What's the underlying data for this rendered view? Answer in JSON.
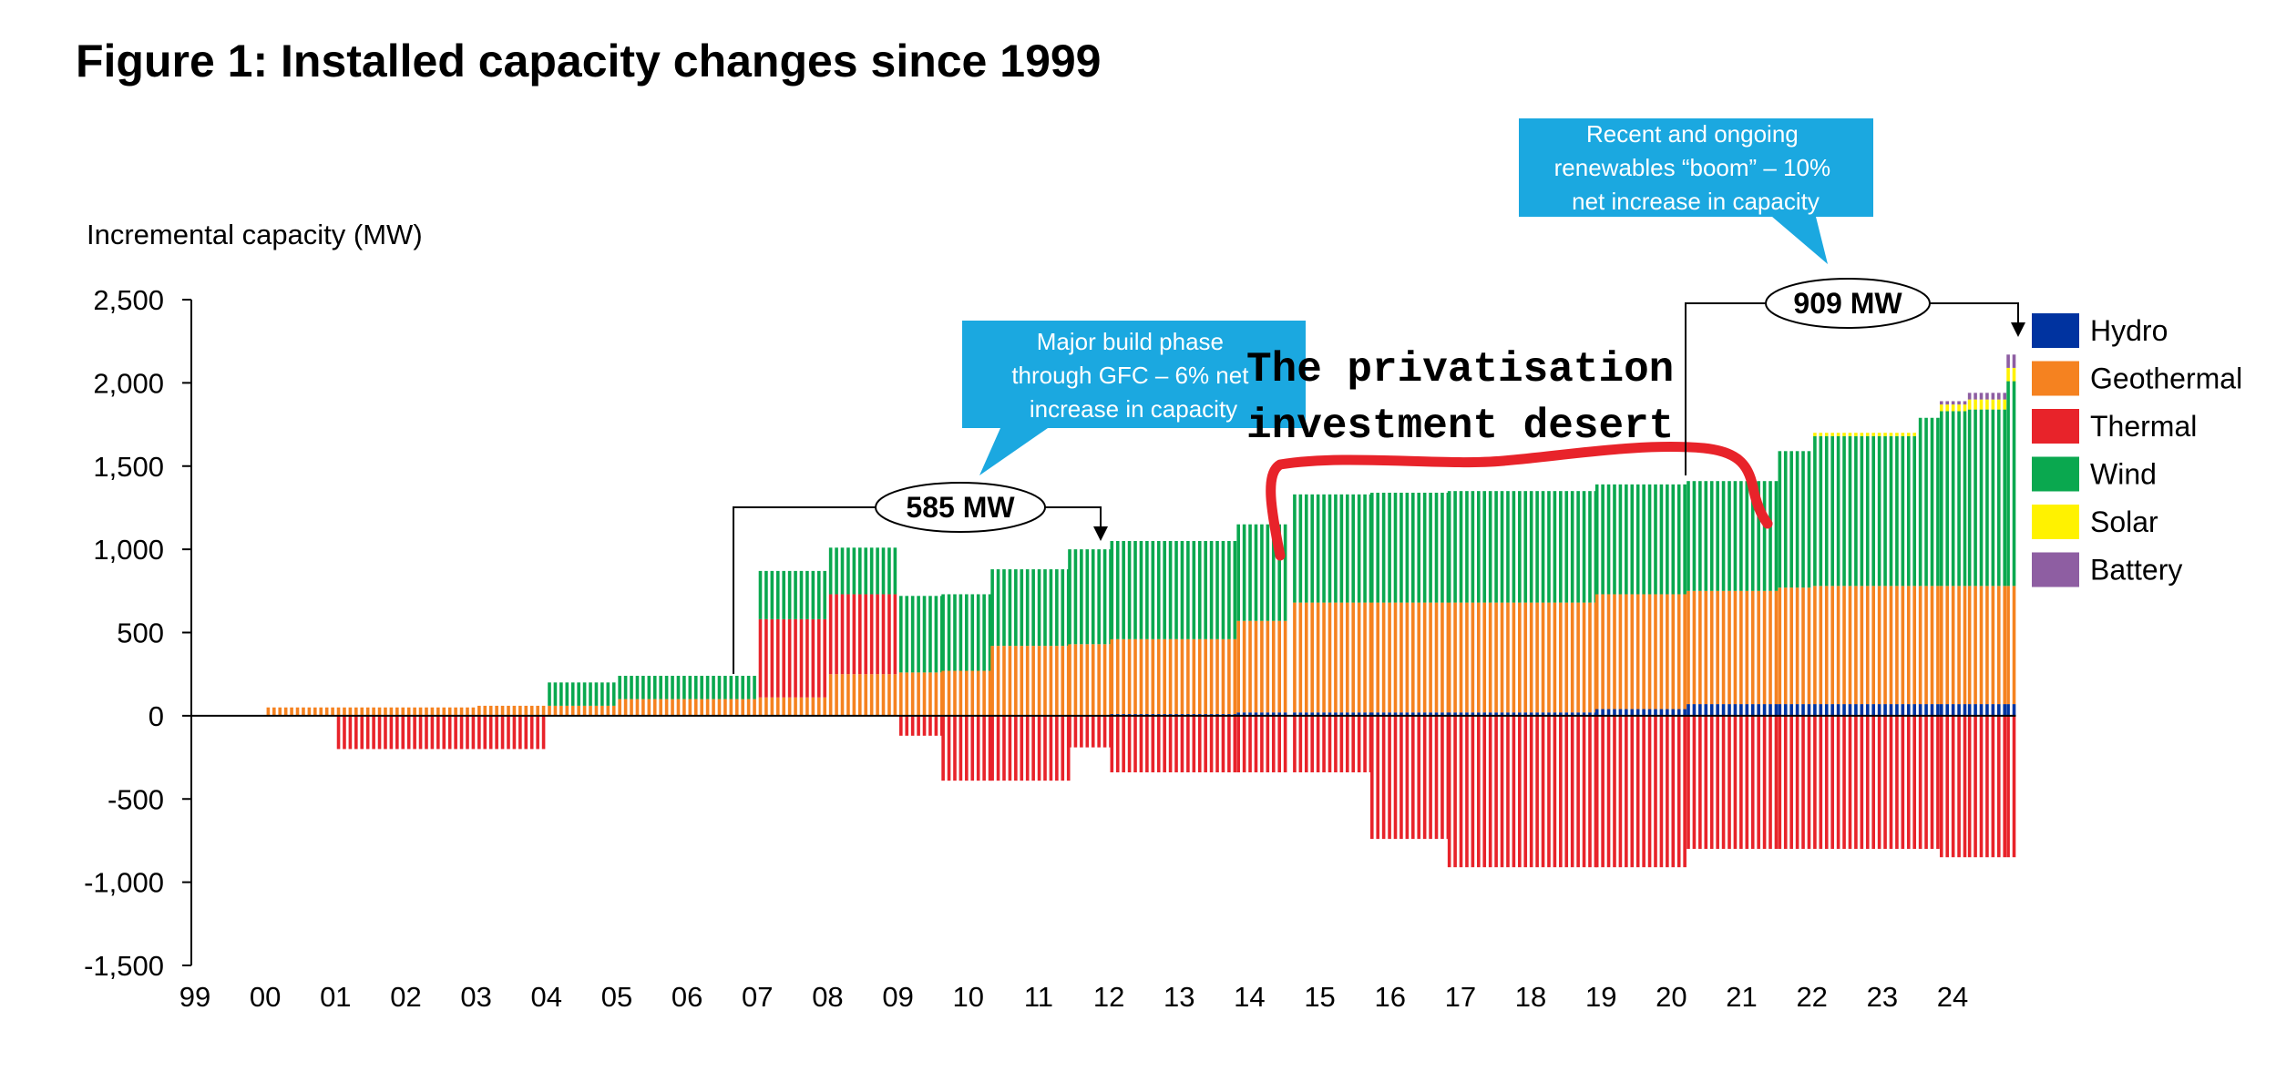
{
  "title": "Figure 1: Installed capacity changes since 1999",
  "chart_data": {
    "type": "bar",
    "stacked": true,
    "ylabel": "Incremental capacity (MW)",
    "ylim": [
      -1500,
      2500
    ],
    "yticks": [
      "2,500",
      "2,000",
      "1,500",
      "1,000",
      "500",
      "0",
      "-500",
      "-1,000",
      "-1,500"
    ],
    "x_tick_labels": [
      "99",
      "00",
      "01",
      "02",
      "03",
      "04",
      "05",
      "06",
      "07",
      "08",
      "09",
      "10",
      "11",
      "12",
      "13",
      "14",
      "15",
      "16",
      "17",
      "18",
      "19",
      "20",
      "21",
      "22",
      "23",
      "24"
    ],
    "series_colors": {
      "Hydro": "#0033a0",
      "Geothermal": "#f58220",
      "Thermal": "#e8232a",
      "Wind": "#0aa84f",
      "Solar": "#fff200",
      "Battery": "#8e5ea2"
    },
    "series": [
      {
        "name": "Hydro"
      },
      {
        "name": "Geothermal"
      },
      {
        "name": "Thermal"
      },
      {
        "name": "Wind"
      },
      {
        "name": "Solar"
      },
      {
        "name": "Battery"
      }
    ],
    "periods": [
      {
        "x0": 2000.0,
        "x1": 2001.0,
        "hydro": 0,
        "geo": 50,
        "thermal_pos": 0,
        "wind": 0,
        "solar": 0,
        "battery": 0,
        "thermal_neg": 0
      },
      {
        "x0": 2001.0,
        "x1": 2003.0,
        "hydro": 0,
        "geo": 50,
        "thermal_pos": 0,
        "wind": 0,
        "solar": 0,
        "battery": 0,
        "thermal_neg": -200
      },
      {
        "x0": 2003.0,
        "x1": 2004.0,
        "hydro": 0,
        "geo": 60,
        "thermal_pos": 0,
        "wind": 0,
        "solar": 0,
        "battery": 0,
        "thermal_neg": -200
      },
      {
        "x0": 2004.0,
        "x1": 2005.0,
        "hydro": 0,
        "geo": 60,
        "thermal_pos": 0,
        "wind": 140,
        "solar": 0,
        "battery": 0,
        "thermal_neg": 0
      },
      {
        "x0": 2005.0,
        "x1": 2007.0,
        "hydro": 0,
        "geo": 100,
        "thermal_pos": 0,
        "wind": 140,
        "solar": 0,
        "battery": 0,
        "thermal_neg": 0
      },
      {
        "x0": 2007.0,
        "x1": 2008.0,
        "hydro": 0,
        "geo": 110,
        "thermal_pos": 470,
        "wind": 290,
        "solar": 0,
        "battery": 0,
        "thermal_neg": 0
      },
      {
        "x0": 2008.0,
        "x1": 2009.0,
        "hydro": 0,
        "geo": 250,
        "thermal_pos": 480,
        "wind": 280,
        "solar": 0,
        "battery": 0,
        "thermal_neg": 0
      },
      {
        "x0": 2009.0,
        "x1": 2009.6,
        "hydro": 0,
        "geo": 260,
        "thermal_pos": 0,
        "wind": 460,
        "solar": 0,
        "battery": 0,
        "thermal_neg": -120
      },
      {
        "x0": 2009.6,
        "x1": 2010.3,
        "hydro": 0,
        "geo": 270,
        "thermal_pos": 0,
        "wind": 460,
        "solar": 0,
        "battery": 0,
        "thermal_neg": -390
      },
      {
        "x0": 2010.3,
        "x1": 2011.4,
        "hydro": 0,
        "geo": 420,
        "thermal_pos": 0,
        "wind": 460,
        "solar": 0,
        "battery": 0,
        "thermal_neg": -390
      },
      {
        "x0": 2011.4,
        "x1": 2012.0,
        "hydro": 0,
        "geo": 430,
        "thermal_pos": 0,
        "wind": 570,
        "solar": 0,
        "battery": 0,
        "thermal_neg": -190
      },
      {
        "x0": 2012.0,
        "x1": 2013.8,
        "hydro": 10,
        "geo": 450,
        "thermal_pos": 0,
        "wind": 590,
        "solar": 0,
        "battery": 0,
        "thermal_neg": -340
      },
      {
        "x0": 2013.8,
        "x1": 2014.5,
        "hydro": 20,
        "geo": 550,
        "thermal_pos": 0,
        "wind": 580,
        "solar": 0,
        "battery": 0,
        "thermal_neg": -340
      },
      {
        "x0": 2014.6,
        "x1": 2015.7,
        "hydro": 20,
        "geo": 660,
        "thermal_pos": 0,
        "wind": 650,
        "solar": 0,
        "battery": 0,
        "thermal_neg": -340
      },
      {
        "x0": 2015.7,
        "x1": 2016.8,
        "hydro": 20,
        "geo": 660,
        "thermal_pos": 0,
        "wind": 660,
        "solar": 0,
        "battery": 0,
        "thermal_neg": -740
      },
      {
        "x0": 2016.8,
        "x1": 2018.9,
        "hydro": 20,
        "geo": 660,
        "thermal_pos": 0,
        "wind": 670,
        "solar": 0,
        "battery": 0,
        "thermal_neg": -910
      },
      {
        "x0": 2018.9,
        "x1": 2020.2,
        "hydro": 40,
        "geo": 690,
        "thermal_pos": 0,
        "wind": 660,
        "solar": 0,
        "battery": 0,
        "thermal_neg": -910
      },
      {
        "x0": 2020.2,
        "x1": 2021.5,
        "hydro": 70,
        "geo": 680,
        "thermal_pos": 0,
        "wind": 660,
        "solar": 0,
        "battery": 0,
        "thermal_neg": -800
      },
      {
        "x0": 2021.5,
        "x1": 2022.0,
        "hydro": 70,
        "geo": 700,
        "thermal_pos": 0,
        "wind": 820,
        "solar": 0,
        "battery": 0,
        "thermal_neg": -800
      },
      {
        "x0": 2022.0,
        "x1": 2023.5,
        "hydro": 70,
        "geo": 710,
        "thermal_pos": 0,
        "wind": 900,
        "solar": 20,
        "battery": 0,
        "thermal_neg": -800
      },
      {
        "x0": 2023.5,
        "x1": 2023.8,
        "hydro": 70,
        "geo": 710,
        "thermal_pos": 0,
        "wind": 1010,
        "solar": 0,
        "battery": 0,
        "thermal_neg": -800
      },
      {
        "x0": 2023.8,
        "x1": 2024.2,
        "hydro": 70,
        "geo": 710,
        "thermal_pos": 0,
        "wind": 1050,
        "solar": 40,
        "battery": 20,
        "thermal_neg": -850
      },
      {
        "x0": 2024.2,
        "x1": 2024.75,
        "hydro": 70,
        "geo": 710,
        "thermal_pos": 0,
        "wind": 1060,
        "solar": 60,
        "battery": 40,
        "thermal_neg": -850
      },
      {
        "x0": 2024.75,
        "x1": 2024.85,
        "hydro": 70,
        "geo": 710,
        "thermal_pos": 0,
        "wind": 1230,
        "solar": 80,
        "battery": 80,
        "thermal_neg": -850
      }
    ],
    "annotations": {
      "callout_gfc": "Major build phase through GFC – 6% net increase in capacity",
      "bubble_585": "585 MW",
      "callout_boom": "Recent and ongoing renewables “boom” – 10% net increase in capacity",
      "bubble_909": "909 MW",
      "desert_line1": "The privatisation",
      "desert_line2": "investment desert"
    }
  }
}
